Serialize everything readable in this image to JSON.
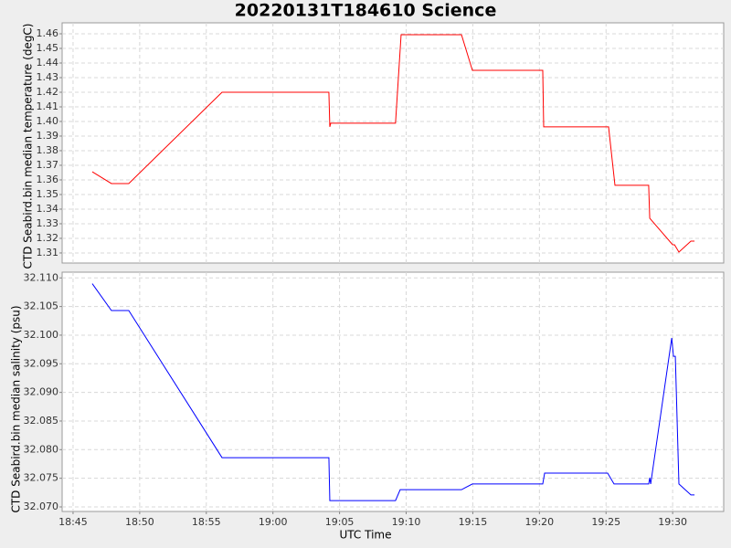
{
  "chart_data": [
    {
      "type": "line",
      "title": "20220131T184610 Science",
      "ylabel": "CTD Seabird.bin median temperature (degC)",
      "x": [
        1126.44,
        1127.88,
        1129.18,
        1136.18,
        1144.2,
        1144.27,
        1144.34,
        1149.2,
        1149.62,
        1154.15,
        1154.97,
        1160.25,
        1160.32,
        1165.19,
        1165.67,
        1168.2,
        1168.28,
        1170.0,
        1170.14,
        1170.47,
        1171.37,
        1171.64
      ],
      "series": [
        {
          "name": "temperature",
          "color": "#ff0000",
          "values": [
            1.3656,
            1.3575,
            1.3575,
            1.42,
            1.42,
            1.3963,
            1.3988,
            1.3988,
            1.4594,
            1.4594,
            1.435,
            1.435,
            1.3963,
            1.3963,
            1.3563,
            1.3563,
            1.3338,
            1.3156,
            1.3156,
            1.3106,
            1.3181,
            1.3181
          ]
        }
      ],
      "xlim": [
        1124.18,
        1173.83
      ],
      "xticks": [
        {
          "value": 1125,
          "label": "18:45"
        },
        {
          "value": 1130,
          "label": "18:50"
        },
        {
          "value": 1135,
          "label": "18:55"
        },
        {
          "value": 1140,
          "label": "19:00"
        },
        {
          "value": 1145,
          "label": "19:05"
        },
        {
          "value": 1150,
          "label": "19:10"
        },
        {
          "value": 1155,
          "label": "19:15"
        },
        {
          "value": 1160,
          "label": "19:20"
        },
        {
          "value": 1165,
          "label": "19:25"
        },
        {
          "value": 1170,
          "label": "19:30"
        }
      ],
      "ylim": [
        1.3031,
        1.4675
      ],
      "yticks": [
        1.31,
        1.32,
        1.33,
        1.34,
        1.35,
        1.36,
        1.37,
        1.38,
        1.39,
        {
          "value": 1.4,
          "label": "1.40"
        },
        1.41,
        1.42,
        1.43,
        1.44,
        1.45,
        1.46
      ],
      "grid": true
    },
    {
      "type": "line",
      "xlabel": "UTC Time",
      "ylabel": "CTD Seabird.bin median salinity (psu)",
      "x": [
        1126.44,
        1127.88,
        1129.18,
        1136.18,
        1144.2,
        1144.27,
        1149.2,
        1149.55,
        1154.15,
        1154.97,
        1160.25,
        1160.39,
        1165.12,
        1165.6,
        1168.2,
        1168.28,
        1168.35,
        1169.93,
        1170.06,
        1170.2,
        1170.47,
        1171.37,
        1171.64
      ],
      "series": [
        {
          "name": "salinity",
          "color": "#0000ff",
          "values": [
            32.109,
            32.1043,
            32.1043,
            32.0786,
            32.0786,
            32.0711,
            32.0711,
            32.073,
            32.073,
            32.074,
            32.074,
            32.0759,
            32.0759,
            32.074,
            32.074,
            32.0751,
            32.074,
            32.0995,
            32.0963,
            32.0963,
            32.074,
            32.0721,
            32.0721
          ]
        }
      ],
      "xlim": [
        1124.18,
        1173.83
      ],
      "xticks": [
        {
          "value": 1125,
          "label": "18:45"
        },
        {
          "value": 1130,
          "label": "18:50"
        },
        {
          "value": 1135,
          "label": "18:55"
        },
        {
          "value": 1140,
          "label": "19:00"
        },
        {
          "value": 1145,
          "label": "19:05"
        },
        {
          "value": 1150,
          "label": "19:10"
        },
        {
          "value": 1155,
          "label": "19:15"
        },
        {
          "value": 1160,
          "label": "19:20"
        },
        {
          "value": 1165,
          "label": "19:25"
        },
        {
          "value": 1170,
          "label": "19:30"
        }
      ],
      "ylim": [
        32.0692,
        32.111
      ],
      "yticks": [
        {
          "value": 32.07,
          "label": "32.070"
        },
        32.075,
        {
          "value": 32.08,
          "label": "32.080"
        },
        32.085,
        {
          "value": 32.09,
          "label": "32.090"
        },
        32.095,
        {
          "value": 32.1,
          "label": "32.100"
        },
        32.105,
        {
          "value": 32.11,
          "label": "32.110"
        }
      ],
      "grid": true
    }
  ]
}
